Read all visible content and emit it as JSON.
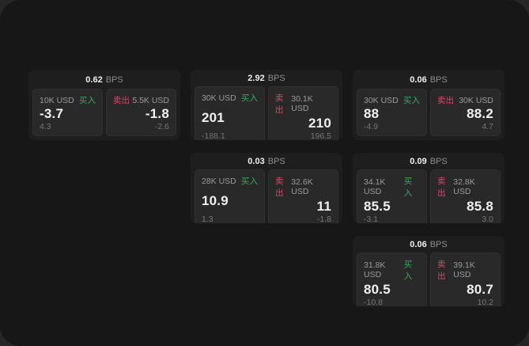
{
  "labels": {
    "bps_unit": "BPS",
    "buy": "买入",
    "sell": "卖出"
  },
  "colors": {
    "buy_green": "#3fa45f",
    "sell_red": "#cc4b66",
    "window_bg": "#171717",
    "card_bg": "#1e1e1e",
    "panel_bg": "#292929"
  },
  "cards": [
    {
      "bps": "0.62",
      "buy": {
        "amount": "10K USD",
        "value": "-3.7",
        "sub": "4.3"
      },
      "sell": {
        "amount": "5.5K USD",
        "value": "-1.8",
        "sub": "-2.6"
      }
    },
    {
      "bps": "2.92",
      "buy": {
        "amount": "30K USD",
        "value": "201",
        "sub": "-188.1"
      },
      "sell": {
        "amount": "30.1K USD",
        "value": "210",
        "sub": "196.5"
      }
    },
    {
      "bps": "0.06",
      "buy": {
        "amount": "30K USD",
        "value": "88",
        "sub": "-4.9"
      },
      "sell": {
        "amount": "30K USD",
        "value": "88.2",
        "sub": "4.7"
      }
    },
    {
      "bps": "0.03",
      "buy": {
        "amount": "28K USD",
        "value": "10.9",
        "sub": "1.3"
      },
      "sell": {
        "amount": "32.6K USD",
        "value": "11",
        "sub": "-1.8"
      }
    },
    {
      "bps": "0.09",
      "buy": {
        "amount": "34.1K USD",
        "value": "85.5",
        "sub": "-3.1"
      },
      "sell": {
        "amount": "32.8K USD",
        "value": "85.8",
        "sub": "3.0"
      }
    },
    {
      "bps": "0.06",
      "buy": {
        "amount": "31.8K USD",
        "value": "80.5",
        "sub": "-10.8"
      },
      "sell": {
        "amount": "39.1K USD",
        "value": "80.7",
        "sub": "10.2"
      }
    }
  ]
}
